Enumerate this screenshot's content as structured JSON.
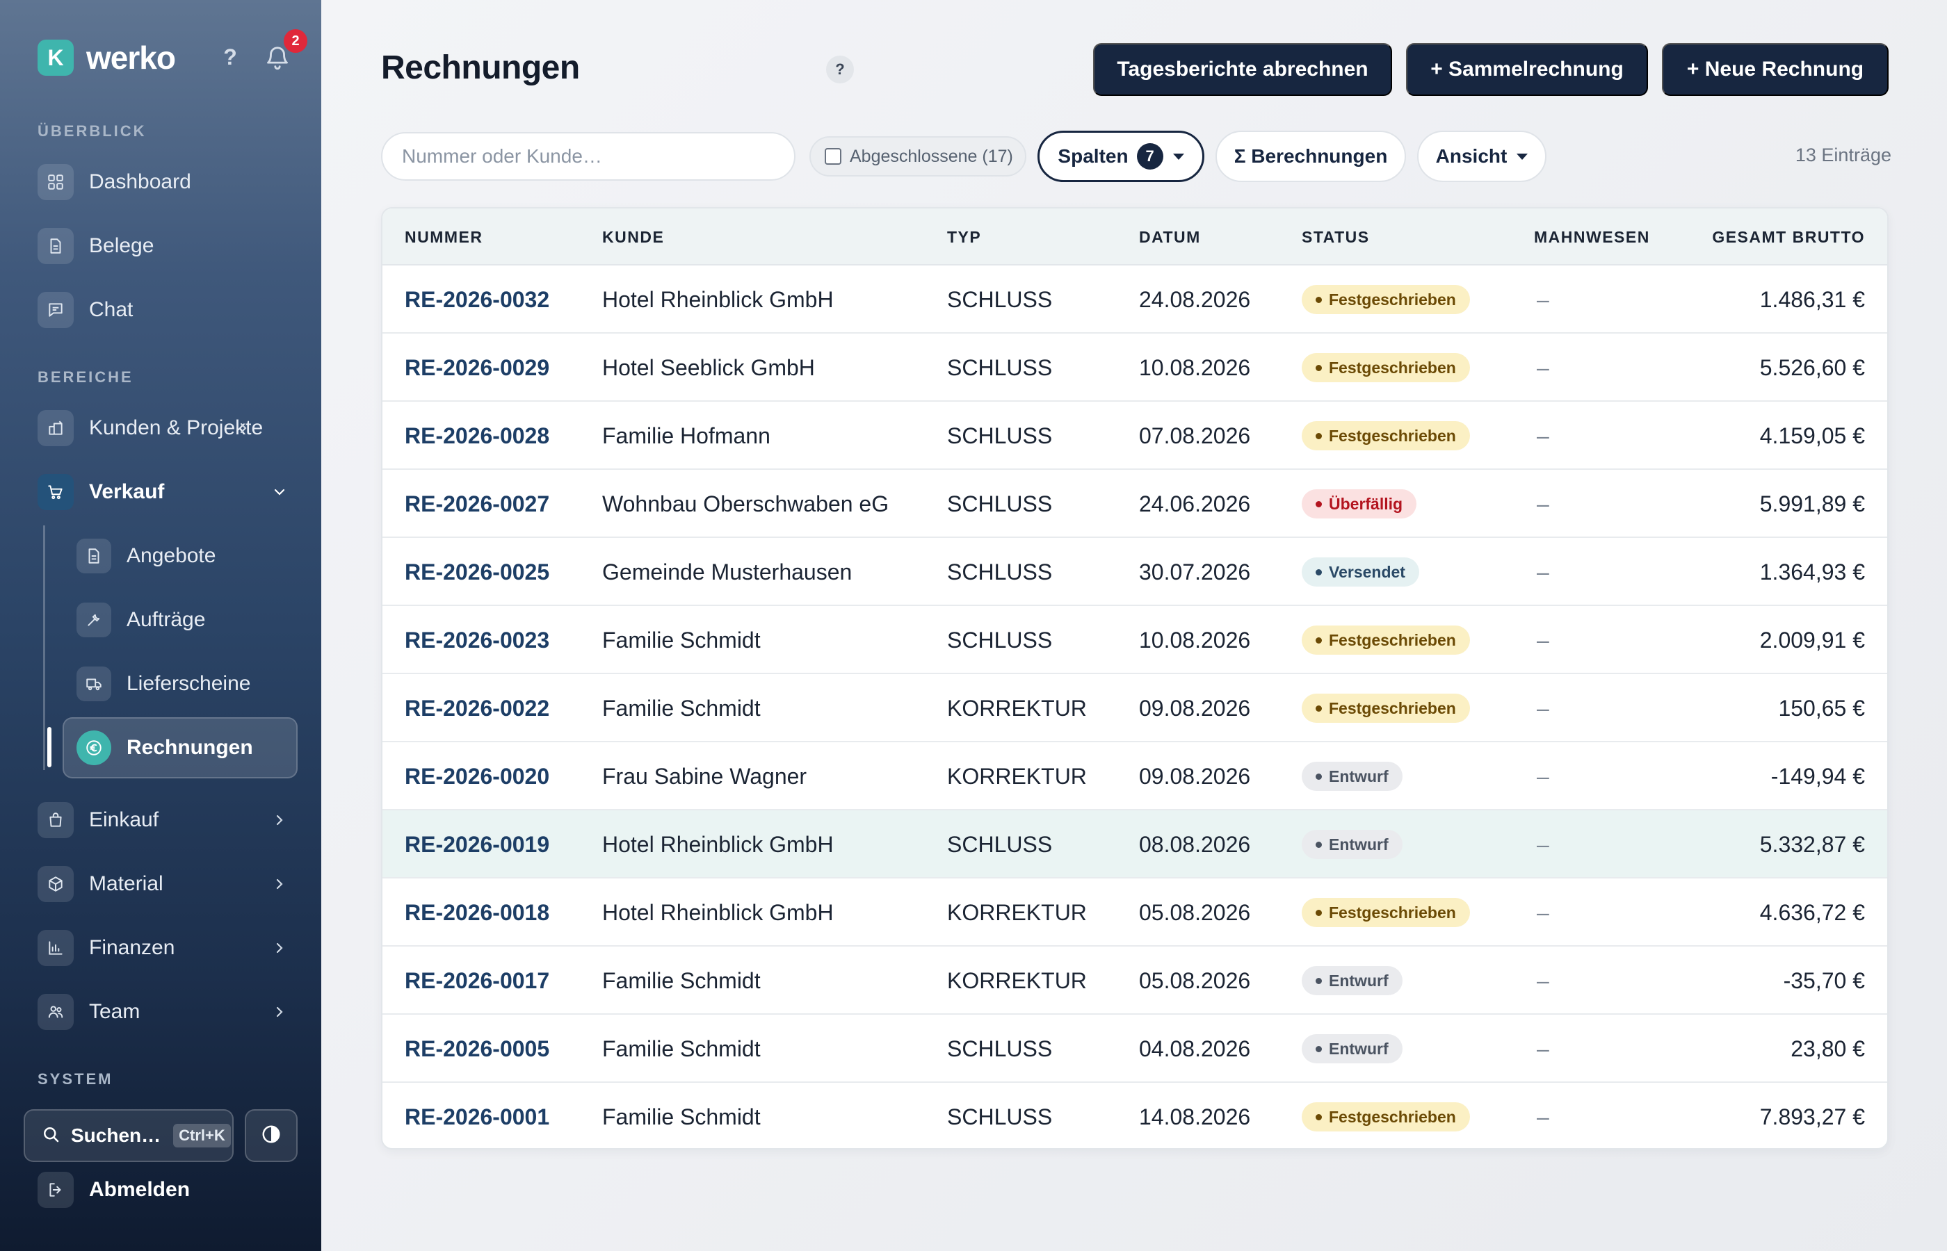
{
  "brand": {
    "logo_letter": "K",
    "name": "werko"
  },
  "topbar": {
    "help_label": "?",
    "notification_count": "2"
  },
  "sidebar": {
    "sections": {
      "overview": "ÜBERBLICK",
      "areas": "BEREICHE",
      "system": "SYSTEM"
    },
    "overview_items": [
      {
        "label": "Dashboard",
        "icon": "grid-icon"
      },
      {
        "label": "Belege",
        "icon": "document-icon"
      },
      {
        "label": "Chat",
        "icon": "chat-icon"
      }
    ],
    "area_items": {
      "kunden": "Kunden & Projekte",
      "verkauf": "Verkauf",
      "einkauf": "Einkauf",
      "material": "Material",
      "finanzen": "Finanzen",
      "team": "Team"
    },
    "verkauf_sub": {
      "angebote": "Angebote",
      "auftraege": "Aufträge",
      "lieferscheine": "Lieferscheine",
      "rechnungen": "Rechnungen"
    },
    "search": {
      "label": "Suchen…",
      "shortcut": "Ctrl+K"
    },
    "logout": "Abmelden"
  },
  "page": {
    "title": "Rechnungen",
    "help": "?",
    "actions": {
      "daily_reports": "Tagesberichte abrechnen",
      "collective": "+ Sammelrechnung",
      "new_invoice": "+ Neue Rechnung"
    },
    "filters": {
      "search_placeholder": "Nummer oder Kunde…",
      "closed_label": "Abgeschlossene (17)",
      "columns_label": "Spalten",
      "columns_count": "7",
      "calculations_label": "Σ Berechnungen",
      "view_label": "Ansicht"
    },
    "entries_count": "13 Einträge"
  },
  "table": {
    "headers": {
      "number": "NUMMER",
      "customer": "KUNDE",
      "type": "TYP",
      "date": "DATUM",
      "status": "STATUS",
      "dunning": "MAHNWESEN",
      "gross": "GESAMT BRUTTO"
    },
    "rows": [
      {
        "number": "RE-2026-0032",
        "customer": "Hotel Rheinblick GmbH",
        "type": "SCHLUSS",
        "date": "24.08.2026",
        "status": "Festgeschrieben",
        "dunning": "–",
        "gross": "1.486,31 €"
      },
      {
        "number": "RE-2026-0029",
        "customer": "Hotel Seeblick GmbH",
        "type": "SCHLUSS",
        "date": "10.08.2026",
        "status": "Festgeschrieben",
        "dunning": "–",
        "gross": "5.526,60 €"
      },
      {
        "number": "RE-2026-0028",
        "customer": "Familie Hofmann",
        "type": "SCHLUSS",
        "date": "07.08.2026",
        "status": "Festgeschrieben",
        "dunning": "–",
        "gross": "4.159,05 €"
      },
      {
        "number": "RE-2026-0027",
        "customer": "Wohnbau Oberschwaben eG",
        "type": "SCHLUSS",
        "date": "24.06.2026",
        "status": "Überfällig",
        "dunning": "–",
        "gross": "5.991,89 €"
      },
      {
        "number": "RE-2026-0025",
        "customer": "Gemeinde Musterhausen",
        "type": "SCHLUSS",
        "date": "30.07.2026",
        "status": "Versendet",
        "dunning": "–",
        "gross": "1.364,93 €"
      },
      {
        "number": "RE-2026-0023",
        "customer": "Familie Schmidt",
        "type": "SCHLUSS",
        "date": "10.08.2026",
        "status": "Festgeschrieben",
        "dunning": "–",
        "gross": "2.009,91 €"
      },
      {
        "number": "RE-2026-0022",
        "customer": "Familie Schmidt",
        "type": "KORREKTUR",
        "date": "09.08.2026",
        "status": "Festgeschrieben",
        "dunning": "–",
        "gross": "150,65 €"
      },
      {
        "number": "RE-2026-0020",
        "customer": "Frau Sabine Wagner",
        "type": "KORREKTUR",
        "date": "09.08.2026",
        "status": "Entwurf",
        "dunning": "–",
        "gross": "-149,94 €"
      },
      {
        "number": "RE-2026-0019",
        "customer": "Hotel Rheinblick GmbH",
        "type": "SCHLUSS",
        "date": "08.08.2026",
        "status": "Entwurf",
        "dunning": "–",
        "gross": "5.332,87 €"
      },
      {
        "number": "RE-2026-0018",
        "customer": "Hotel Rheinblick GmbH",
        "type": "KORREKTUR",
        "date": "05.08.2026",
        "status": "Festgeschrieben",
        "dunning": "–",
        "gross": "4.636,72 €"
      },
      {
        "number": "RE-2026-0017",
        "customer": "Familie Schmidt",
        "type": "KORREKTUR",
        "date": "05.08.2026",
        "status": "Entwurf",
        "dunning": "–",
        "gross": "-35,70 €"
      },
      {
        "number": "RE-2026-0005",
        "customer": "Familie Schmidt",
        "type": "SCHLUSS",
        "date": "04.08.2026",
        "status": "Entwurf",
        "dunning": "–",
        "gross": "23,80 €"
      },
      {
        "number": "RE-2026-0001",
        "customer": "Familie Schmidt",
        "type": "SCHLUSS",
        "date": "14.08.2026",
        "status": "Festgeschrieben",
        "dunning": "–",
        "gross": "7.893,27 €"
      }
    ]
  },
  "colors": {
    "primary_dark": "#172640",
    "accent_teal": "#3fb5ad",
    "status_committed_bg": "#fbf0c4",
    "status_committed_fg": "#6b4a05",
    "status_overdue_bg": "#fbe1e1",
    "status_overdue_fg": "#b3141f",
    "status_sent_bg": "#e5f1f2",
    "status_sent_fg": "#2a4966",
    "status_draft_bg": "#eaebee",
    "status_draft_fg": "#4a5361"
  }
}
